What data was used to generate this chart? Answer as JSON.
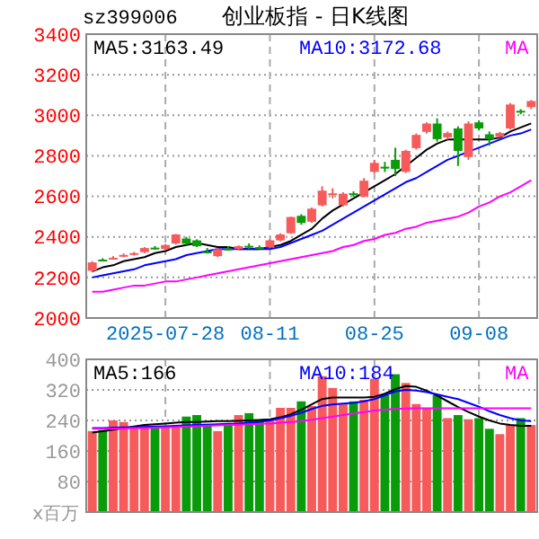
{
  "chart_data": [
    {
      "type": "candlestick",
      "title": "创业板指 - 日K线图",
      "subtitle": "sz399006",
      "categories": [
        null,
        null,
        null,
        null,
        null,
        null,
        null,
        "2025-07-28",
        null,
        null,
        null,
        null,
        null,
        null,
        null,
        null,
        null,
        "08-11",
        null,
        null,
        null,
        null,
        null,
        null,
        null,
        null,
        null,
        "08-25",
        null,
        null,
        null,
        null,
        null,
        null,
        null,
        null,
        null,
        "09-08",
        null,
        null,
        null,
        null,
        null
      ],
      "ohlc": [
        [
          2233,
          2280,
          2225,
          2274
        ],
        [
          2288,
          2295,
          2280,
          2286
        ],
        [
          2292,
          2305,
          2288,
          2297
        ],
        [
          2306,
          2318,
          2300,
          2311
        ],
        [
          2314,
          2326,
          2308,
          2320
        ],
        [
          2325,
          2350,
          2320,
          2345
        ],
        [
          2347,
          2355,
          2338,
          2343
        ],
        [
          2340,
          2365,
          2335,
          2360
        ],
        [
          2368,
          2415,
          2362,
          2412
        ],
        [
          2392,
          2400,
          2360,
          2366
        ],
        [
          2383,
          2388,
          2350,
          2354
        ],
        [
          2328,
          2345,
          2318,
          2323
        ],
        [
          2305,
          2345,
          2300,
          2340
        ],
        [
          2342,
          2355,
          2332,
          2338
        ],
        [
          2340,
          2358,
          2335,
          2354
        ],
        [
          2356,
          2368,
          2340,
          2352
        ],
        [
          2350,
          2358,
          2338,
          2346
        ],
        [
          2348,
          2388,
          2345,
          2383
        ],
        [
          2383,
          2418,
          2378,
          2412
        ],
        [
          2418,
          2500,
          2415,
          2498
        ],
        [
          2504,
          2512,
          2460,
          2469
        ],
        [
          2475,
          2545,
          2470,
          2539
        ],
        [
          2556,
          2650,
          2550,
          2628
        ],
        [
          2610,
          2640,
          2590,
          2615
        ],
        [
          2556,
          2620,
          2550,
          2613
        ],
        [
          2615,
          2625,
          2598,
          2611
        ],
        [
          2599,
          2690,
          2595,
          2677
        ],
        [
          2721,
          2780,
          2715,
          2765
        ],
        [
          2746,
          2770,
          2720,
          2742
        ],
        [
          2780,
          2840,
          2700,
          2735
        ],
        [
          2721,
          2830,
          2715,
          2824
        ],
        [
          2838,
          2910,
          2830,
          2903
        ],
        [
          2918,
          2965,
          2910,
          2959
        ],
        [
          2959,
          2985,
          2870,
          2882
        ],
        [
          2891,
          2920,
          2880,
          2912
        ],
        [
          2935,
          2945,
          2750,
          2824
        ],
        [
          2794,
          2970,
          2780,
          2959
        ],
        [
          2965,
          2975,
          2925,
          2935
        ],
        [
          2906,
          2920,
          2850,
          2882
        ],
        [
          2894,
          2918,
          2890,
          2912
        ],
        [
          2935,
          3060,
          2930,
          3053
        ],
        [
          3022,
          3030,
          3005,
          3018
        ],
        [
          3040,
          3075,
          3030,
          3070
        ]
      ],
      "colors": [
        "#f65a5a",
        "#0a9b0a",
        "#f65a5a",
        "#f65a5a",
        "#f65a5a",
        "#f65a5a",
        "#0a9b0a",
        "#f65a5a",
        "#f65a5a",
        "#0a9b0a",
        "#0a9b0a",
        "#0a9b0a",
        "#f65a5a",
        "#0a9b0a",
        "#f65a5a",
        "#0a9b0a",
        "#0a9b0a",
        "#f65a5a",
        "#f65a5a",
        "#f65a5a",
        "#0a9b0a",
        "#f65a5a",
        "#f65a5a",
        "#f65a5a",
        "#f65a5a",
        "#0a9b0a",
        "#f65a5a",
        "#f65a5a",
        "#0a9b0a",
        "#0a9b0a",
        "#f65a5a",
        "#f65a5a",
        "#f65a5a",
        "#0a9b0a",
        "#f65a5a",
        "#0a9b0a",
        "#f65a5a",
        "#0a9b0a",
        "#0a9b0a",
        "#f65a5a",
        "#f65a5a",
        "#0a9b0a",
        "#f65a5a"
      ],
      "series": [
        {
          "type": "line",
          "name": "MA5:3163.49",
          "color": "#000000",
          "values": [
            2230,
            2250,
            2260,
            2280,
            2290,
            2300,
            2320,
            2330,
            2350,
            2360,
            2370,
            2360,
            2350,
            2350,
            2340,
            2340,
            2340,
            2350,
            2360,
            2380,
            2410,
            2440,
            2490,
            2530,
            2560,
            2590,
            2620,
            2650,
            2680,
            2710,
            2750,
            2790,
            2830,
            2860,
            2880,
            2880,
            2880,
            2880,
            2880,
            2890,
            2920,
            2940,
            2960
          ]
        },
        {
          "type": "line",
          "name": "MA10:3172.68",
          "color": "#0000ff",
          "values": [
            2200,
            2210,
            2220,
            2230,
            2240,
            2260,
            2270,
            2280,
            2290,
            2310,
            2320,
            2330,
            2340,
            2340,
            2340,
            2340,
            2340,
            2340,
            2350,
            2370,
            2390,
            2410,
            2430,
            2460,
            2490,
            2520,
            2550,
            2580,
            2610,
            2640,
            2670,
            2690,
            2720,
            2750,
            2780,
            2800,
            2820,
            2840,
            2860,
            2880,
            2900,
            2910,
            2930
          ]
        },
        {
          "type": "line",
          "name": "MA",
          "color": "#ff00ff",
          "values": [
            2130,
            2130,
            2140,
            2150,
            2160,
            2160,
            2170,
            2180,
            2180,
            2190,
            2200,
            2210,
            2220,
            2230,
            2240,
            2250,
            2260,
            2270,
            2280,
            2290,
            2300,
            2310,
            2320,
            2330,
            2350,
            2360,
            2380,
            2390,
            2410,
            2420,
            2440,
            2450,
            2470,
            2480,
            2490,
            2500,
            2520,
            2550,
            2570,
            2600,
            2620,
            2650,
            2680
          ]
        }
      ],
      "ylim": [
        2000,
        3400
      ],
      "yticks": [
        2000,
        2200,
        2400,
        2600,
        2800,
        3000,
        3200,
        3400
      ],
      "grid": true
    },
    {
      "type": "bar",
      "ylabel": "x百万",
      "categories": [
        null,
        null,
        null,
        null,
        null,
        null,
        null,
        null,
        null,
        null,
        null,
        null,
        null,
        null,
        null,
        null,
        null,
        null,
        null,
        null,
        null,
        null,
        null,
        null,
        null,
        null,
        null,
        null,
        null,
        null,
        null,
        null,
        null,
        null,
        null,
        null,
        null,
        null,
        null,
        null,
        null,
        null,
        null
      ],
      "series": [
        {
          "colors": [
            "#f65a5a",
            "#0a9b0a",
            "#f65a5a",
            "#f65a5a",
            "#f65a5a",
            "#f65a5a",
            "#0a9b0a",
            "#f65a5a",
            "#f65a5a",
            "#0a9b0a",
            "#0a9b0a",
            "#0a9b0a",
            "#f65a5a",
            "#0a9b0a",
            "#f65a5a",
            "#0a9b0a",
            "#0a9b0a",
            "#f65a5a",
            "#f65a5a",
            "#f65a5a",
            "#0a9b0a",
            "#f65a5a",
            "#f65a5a",
            "#f65a5a",
            "#f65a5a",
            "#0a9b0a",
            "#f65a5a",
            "#f65a5a",
            "#0a9b0a",
            "#0a9b0a",
            "#f65a5a",
            "#f65a5a",
            "#f65a5a",
            "#0a9b0a",
            "#f65a5a",
            "#0a9b0a",
            "#f65a5a",
            "#0a9b0a",
            "#0a9b0a",
            "#f65a5a",
            "#f65a5a",
            "#0a9b0a",
            "#f65a5a"
          ],
          "values": [
            212,
            215,
            240,
            236,
            225,
            228,
            225,
            225,
            228,
            250,
            254,
            231,
            212,
            231,
            254,
            259,
            243,
            243,
            273,
            273,
            290,
            278,
            356,
            325,
            283,
            290,
            294,
            349,
            306,
            361,
            338,
            283,
            272,
            306,
            246,
            254,
            243,
            246,
            218,
            204,
            228,
            246,
            228
          ]
        },
        {
          "type": "line",
          "name": "MA5:166",
          "color": "#000000",
          "values": [
            208,
            212,
            216,
            220,
            224,
            228,
            230,
            232,
            234,
            236,
            236,
            237,
            238,
            238,
            239,
            240,
            241,
            243,
            248,
            256,
            268,
            282,
            296,
            300,
            300,
            300,
            300,
            302,
            310,
            322,
            330,
            328,
            318,
            305,
            290,
            275,
            262,
            250,
            240,
            232,
            228,
            226,
            226
          ]
        },
        {
          "type": "line",
          "name": "MA10:184",
          "color": "#0000ff",
          "values": [
            220,
            220,
            221,
            222,
            222,
            223,
            224,
            225,
            226,
            227,
            228,
            229,
            230,
            231,
            232,
            234,
            236,
            240,
            246,
            252,
            260,
            270,
            278,
            282,
            284,
            286,
            290,
            296,
            306,
            316,
            320,
            318,
            314,
            308,
            302,
            296,
            286,
            276,
            264,
            254,
            246,
            240,
            238
          ]
        },
        {
          "type": "line",
          "name": "MA",
          "color": "#ff00ff",
          "values": [
            218,
            218,
            219,
            219,
            220,
            220,
            221,
            222,
            223,
            224,
            225,
            226,
            227,
            228,
            229,
            230,
            231,
            232,
            234,
            236,
            238,
            242,
            246,
            250,
            254,
            258,
            262,
            266,
            268,
            270,
            271,
            272,
            272,
            272,
            272,
            272,
            272,
            272,
            272,
            272,
            272,
            272,
            272
          ]
        }
      ],
      "ylim": [
        0,
        400
      ],
      "yticks": [
        80,
        160,
        240,
        320,
        400
      ],
      "grid": true
    }
  ]
}
